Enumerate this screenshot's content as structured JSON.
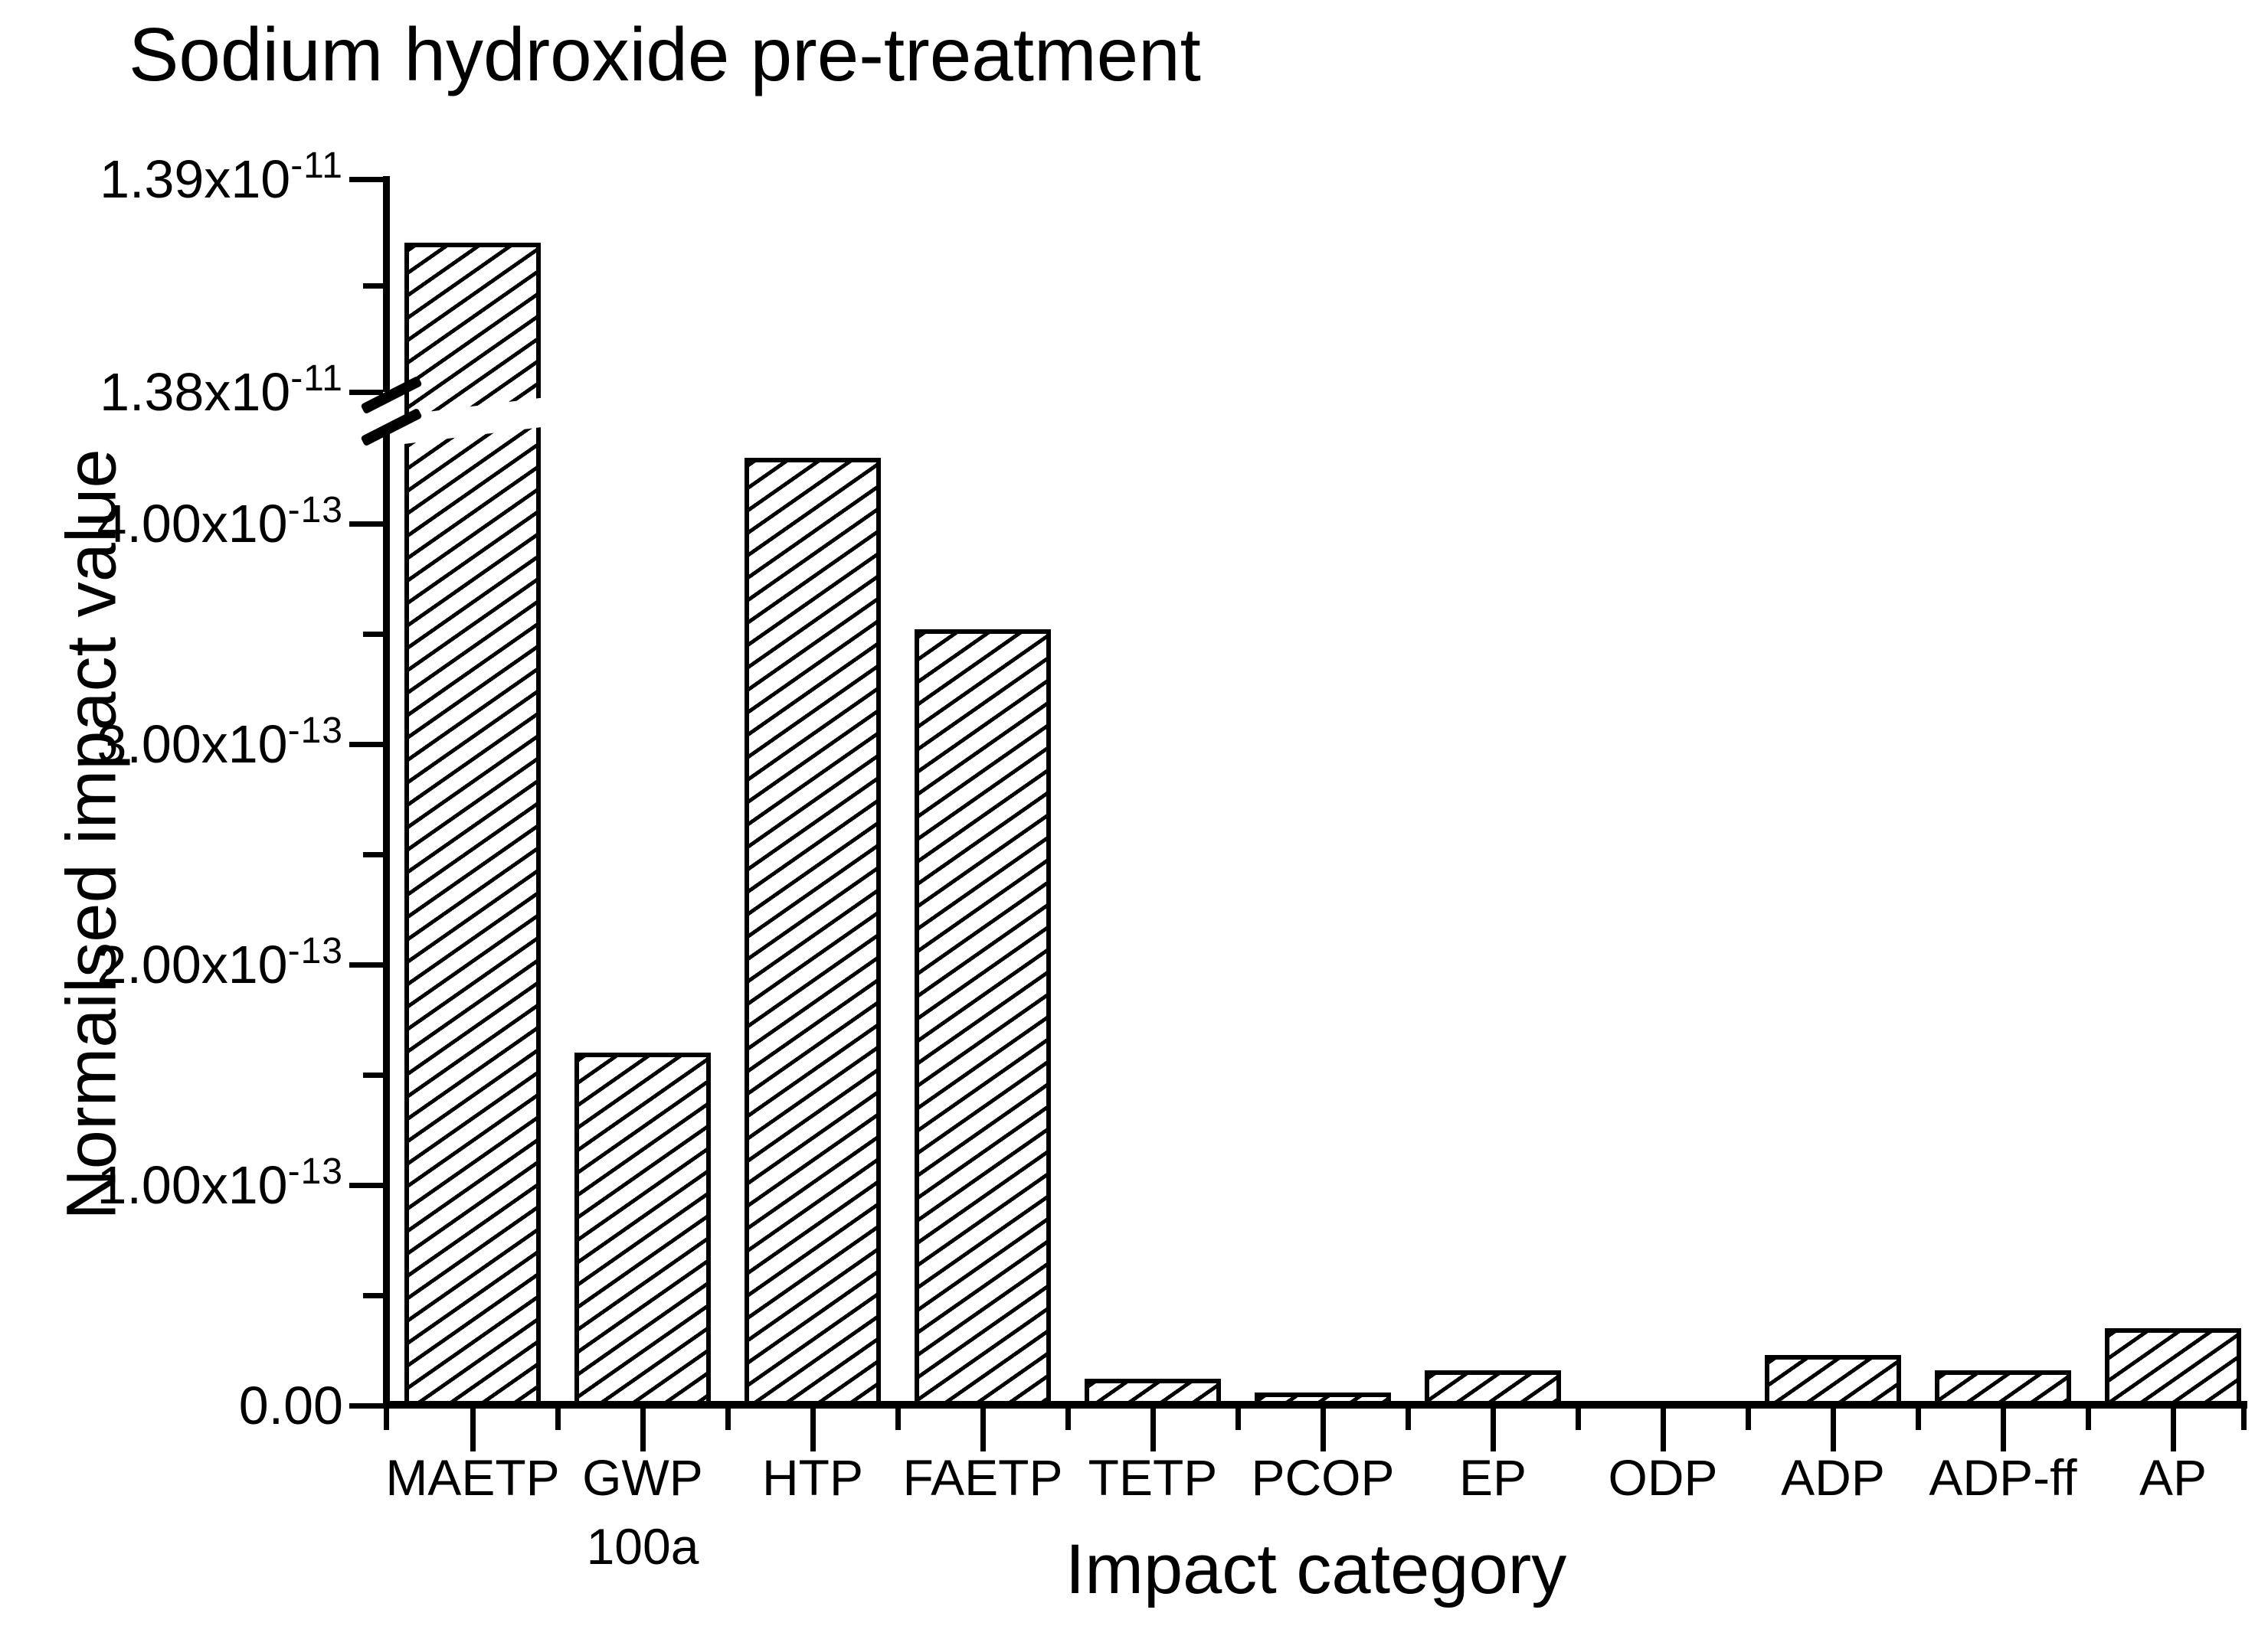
{
  "title": "Sodium hydroxide pre-treatment",
  "y_axis": {
    "label": "Normailsed impact value",
    "major_ticks": [
      {
        "value": 1.39e-11,
        "main": "1.39x10",
        "sup": "-11"
      },
      {
        "value": 1.38e-11,
        "main": "1.38x10",
        "sup": "-11"
      },
      {
        "value": 4e-13,
        "main": "4.00x10",
        "sup": "-13"
      },
      {
        "value": 3e-13,
        "main": "3.00x10",
        "sup": "-13"
      },
      {
        "value": 2e-13,
        "main": "2.00x10",
        "sup": "-13"
      },
      {
        "value": 1e-13,
        "main": "1.00x10",
        "sup": "-13"
      },
      {
        "value": 0,
        "main": "0.00",
        "sup": ""
      }
    ],
    "minor_tick_values": [
      1.385e-11,
      3.5e-13,
      2.5e-13,
      1.5e-13,
      5e-14
    ]
  },
  "x_axis": {
    "label": "Impact category",
    "categories": [
      {
        "label": "MAETP",
        "sub": ""
      },
      {
        "label": "GWP",
        "sub": "100a"
      },
      {
        "label": "HTP",
        "sub": ""
      },
      {
        "label": "FAETP",
        "sub": ""
      },
      {
        "label": "TETP",
        "sub": ""
      },
      {
        "label": "PCOP",
        "sub": ""
      },
      {
        "label": "EP",
        "sub": ""
      },
      {
        "label": "ODP",
        "sub": ""
      },
      {
        "label": "ADP",
        "sub": ""
      },
      {
        "label": "ADP-ff",
        "sub": ""
      },
      {
        "label": "AP",
        "sub": ""
      }
    ]
  },
  "chart_data": {
    "type": "bar",
    "title": "Sodium hydroxide pre-treatment",
    "xlabel": "Impact category",
    "ylabel": "Normailsed impact value",
    "categories": [
      "MAETP",
      "GWP 100a",
      "HTP",
      "FAETP",
      "TETP",
      "PCOP",
      "EP",
      "ODP",
      "ADP",
      "ADP-ff",
      "AP"
    ],
    "values": [
      1.387e-11,
      1.6e-13,
      4.3e-13,
      3.52e-13,
      1.2e-14,
      6e-15,
      1.6e-14,
      0,
      2.3e-14,
      1.6e-14,
      3.5e-14
    ],
    "axis_break": {
      "lower_min": 0,
      "lower_max": 4.4e-13,
      "upper_min": 1.38e-11,
      "upper_max": 1.39e-11
    },
    "bar_fill": "white with black diagonal hatch",
    "bar_edge_color": "#000000",
    "background_color": "#ffffff",
    "grid": false,
    "legend": "none"
  }
}
